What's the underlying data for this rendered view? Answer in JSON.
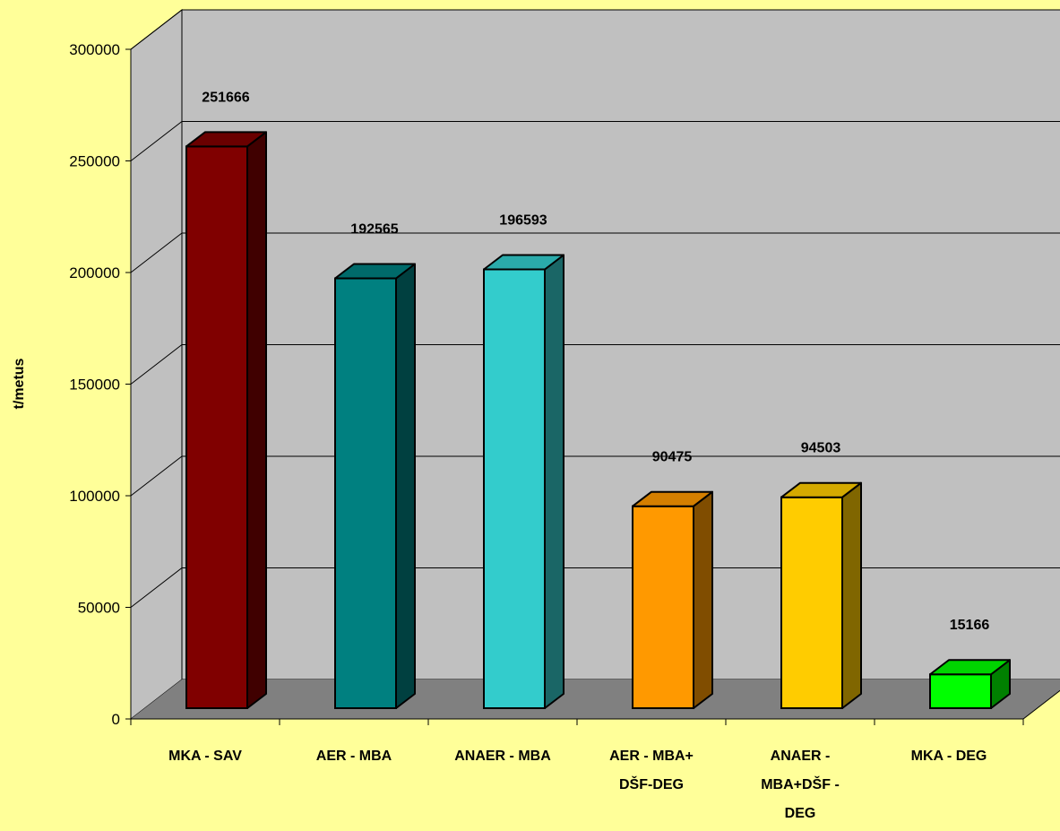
{
  "chart_data": {
    "type": "bar",
    "style": "3d-column",
    "title": "",
    "xlabel": "",
    "ylabel": "t/metus",
    "ylim": [
      0,
      300000
    ],
    "yticks": [
      0,
      50000,
      100000,
      150000,
      200000,
      250000,
      300000
    ],
    "ytick_labels": [
      "0",
      "50000",
      "100000",
      "150000",
      "200000",
      "250000",
      "300000"
    ],
    "grid": true,
    "legend": "none",
    "categories": [
      [
        "MKA - SAV"
      ],
      [
        "AER - MBA"
      ],
      [
        "ANAER - MBA"
      ],
      [
        "AER - MBA+",
        "DŠF-DEG"
      ],
      [
        "ANAER -",
        "MBA+DŠF -",
        "DEG"
      ],
      [
        "MKA - DEG"
      ]
    ],
    "values": [
      251666,
      192565,
      196593,
      90475,
      94503,
      15166
    ],
    "data_labels": [
      "251666",
      "192565",
      "196593",
      "90475",
      "94503",
      "15166"
    ],
    "colors": [
      {
        "front": "#800000",
        "top": "#6A0000",
        "side": "#400000"
      },
      {
        "front": "#008080",
        "top": "#006A6A",
        "side": "#004040"
      },
      {
        "front": "#33CCCC",
        "top": "#2AAAAA",
        "side": "#1A6666"
      },
      {
        "front": "#FF9900",
        "top": "#D47F00",
        "side": "#804D00"
      },
      {
        "front": "#FFCC00",
        "top": "#D4AA00",
        "side": "#806600"
      },
      {
        "front": "#00FF00",
        "top": "#00D400",
        "side": "#008000"
      }
    ],
    "background_color": "#FFFF99",
    "wall_color": "#C0C0C0",
    "floor_color": "#808080"
  }
}
